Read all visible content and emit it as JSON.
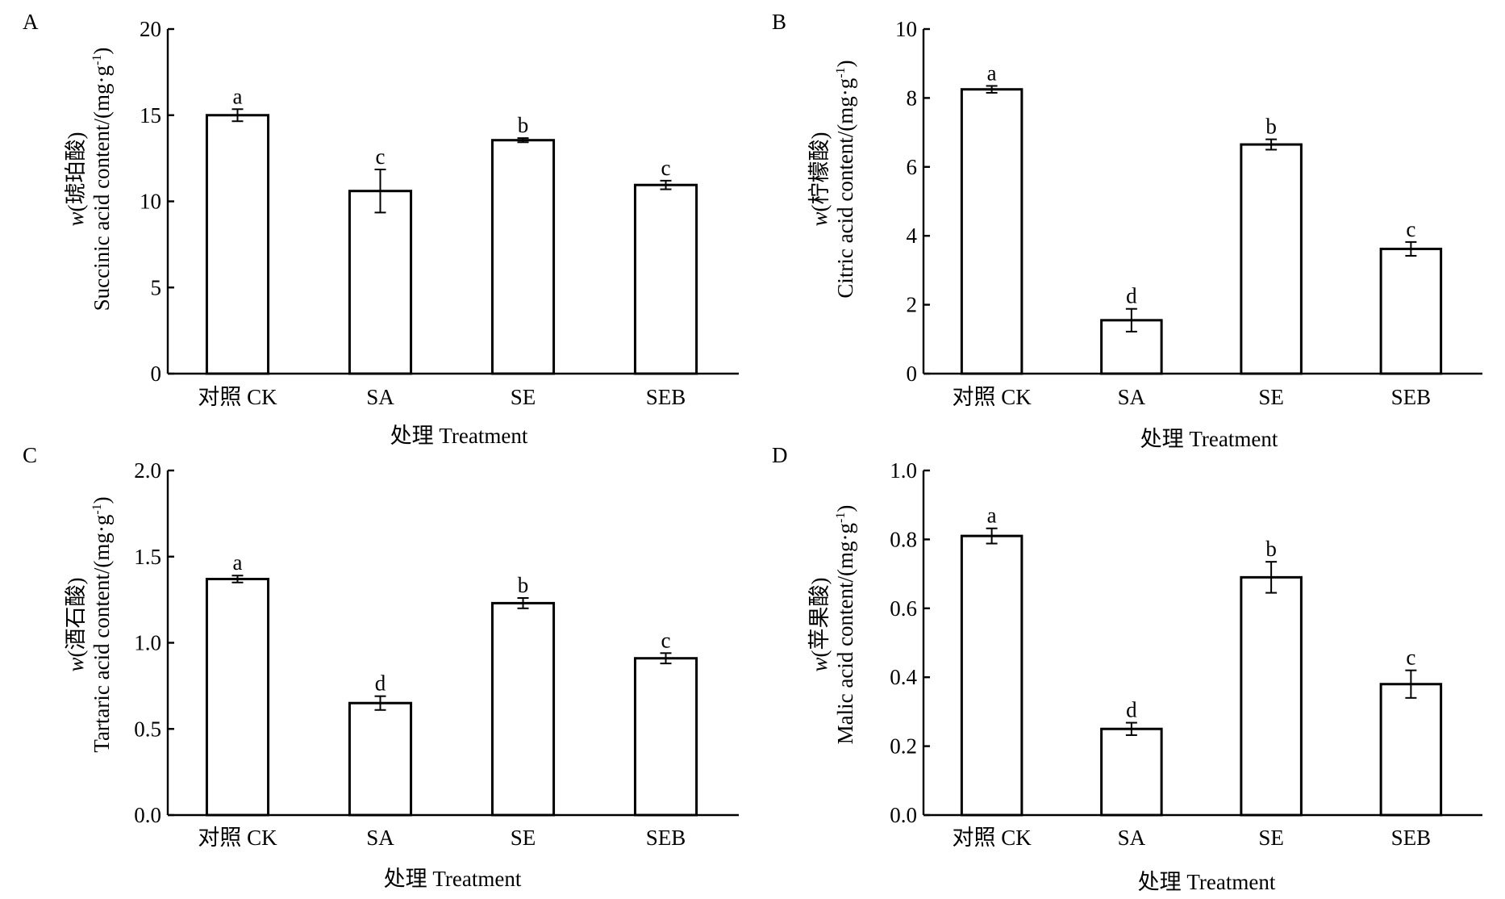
{
  "chart_data": [
    {
      "type": "bar",
      "panel": "A",
      "categories": [
        "对照 CK",
        "SA",
        "SE",
        "SEB"
      ],
      "values": [
        15.0,
        10.6,
        13.55,
        10.95
      ],
      "errors": [
        0.35,
        1.25,
        0.12,
        0.25
      ],
      "significance": [
        "a",
        "c",
        "b",
        "c"
      ],
      "ylabel_prefix": "w",
      "ylabel_main": "(琥珀酸)",
      "ylabel_line2": "Succinic acid content/(mg·g",
      "ylabel_sup": "-1",
      "ylabel_close": ")",
      "xlabel": "处理 Treatment",
      "ylim": [
        0,
        20
      ],
      "yticks": [
        0,
        5,
        10,
        15,
        20
      ],
      "ytick_labels": [
        "0",
        "5",
        "10",
        "15",
        "20"
      ]
    },
    {
      "type": "bar",
      "panel": "B",
      "categories": [
        "对照 CK",
        "SA",
        "SE",
        "SEB"
      ],
      "values": [
        8.25,
        1.55,
        6.65,
        3.62
      ],
      "errors": [
        0.1,
        0.33,
        0.15,
        0.2
      ],
      "significance": [
        "a",
        "d",
        "b",
        "c"
      ],
      "ylabel_prefix": "w",
      "ylabel_main": "(柠檬酸)",
      "ylabel_line2": "Citric acid content/(mg·g",
      "ylabel_sup": "-1",
      "ylabel_close": ")",
      "xlabel": "处理 Treatment",
      "ylim": [
        0,
        10
      ],
      "yticks": [
        0,
        2,
        4,
        6,
        8,
        10
      ],
      "ytick_labels": [
        "0",
        "2",
        "4",
        "6",
        "8",
        "10"
      ]
    },
    {
      "type": "bar",
      "panel": "C",
      "categories": [
        "对照 CK",
        "SA",
        "SE",
        "SEB"
      ],
      "values": [
        1.37,
        0.65,
        1.23,
        0.91
      ],
      "errors": [
        0.02,
        0.04,
        0.03,
        0.03
      ],
      "significance": [
        "a",
        "d",
        "b",
        "c"
      ],
      "ylabel_prefix": "w",
      "ylabel_main": "(酒石酸)",
      "ylabel_line2": "Tartaric acid content/(mg·g",
      "ylabel_sup": "-1",
      "ylabel_close": ")",
      "xlabel": "处理 Treatment",
      "ylim": [
        0,
        2.0
      ],
      "yticks": [
        0,
        0.5,
        1.0,
        1.5,
        2.0
      ],
      "ytick_labels": [
        "0.0",
        "0.5",
        "1.0",
        "1.5",
        "2.0"
      ]
    },
    {
      "type": "bar",
      "panel": "D",
      "categories": [
        "对照 CK",
        "SA",
        "SE",
        "SEB"
      ],
      "values": [
        0.81,
        0.25,
        0.69,
        0.38
      ],
      "errors": [
        0.022,
        0.018,
        0.045,
        0.04
      ],
      "significance": [
        "a",
        "d",
        "b",
        "c"
      ],
      "ylabel_prefix": "w",
      "ylabel_main": "(苹果酸)",
      "ylabel_line2": "Malic acid content/(mg·g",
      "ylabel_sup": "-1",
      "ylabel_close": ")",
      "xlabel": "处理 Treatment",
      "ylim": [
        0,
        1.0
      ],
      "yticks": [
        0,
        0.2,
        0.4,
        0.6,
        0.8,
        1.0
      ],
      "ytick_labels": [
        "0.0",
        "0.2",
        "0.4",
        "0.6",
        "0.8",
        "1.0"
      ]
    }
  ]
}
